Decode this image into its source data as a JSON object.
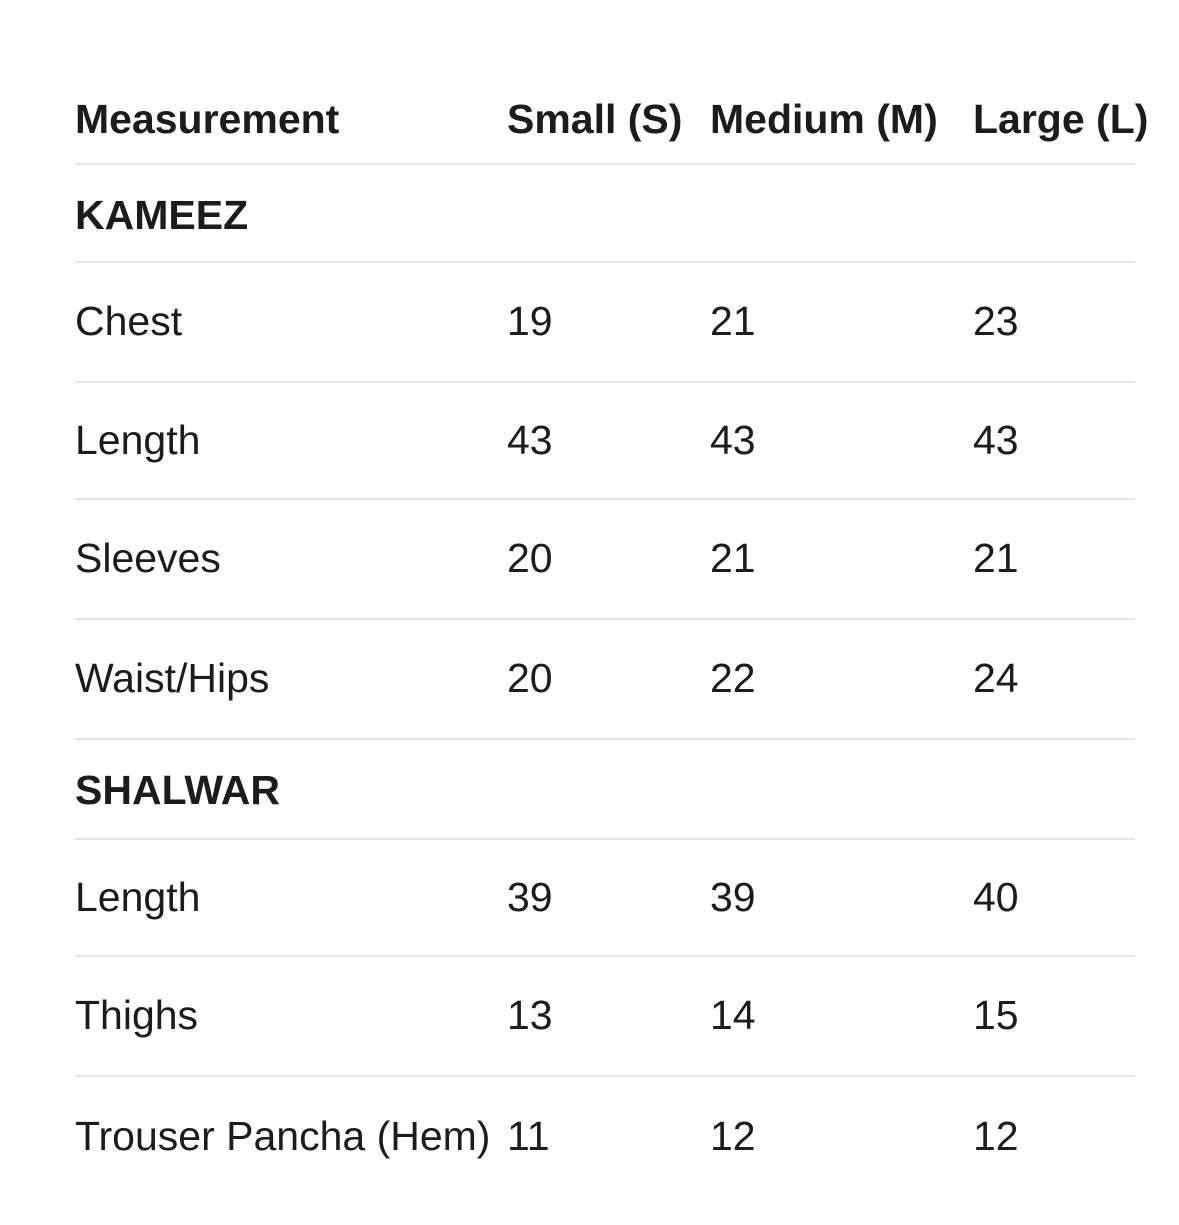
{
  "table": {
    "columns": [
      "Measurement",
      "Small (S)",
      "Medium (M)",
      "Large (L)"
    ],
    "sections": [
      {
        "name": "KAMEEZ",
        "rows": [
          {
            "label": "Chest",
            "values": [
              "19",
              "21",
              "23"
            ]
          },
          {
            "label": "Length",
            "values": [
              "43",
              "43",
              "43"
            ]
          },
          {
            "label": "Sleeves",
            "values": [
              "20",
              "21",
              "21"
            ]
          },
          {
            "label": "Waist/Hips",
            "values": [
              "20",
              "22",
              "24"
            ]
          }
        ]
      },
      {
        "name": "SHALWAR",
        "rows": [
          {
            "label": "Length",
            "values": [
              "39",
              "39",
              "40"
            ]
          },
          {
            "label": "Thighs",
            "values": [
              "13",
              "14",
              "15"
            ]
          },
          {
            "label": "Trouser Pancha (Hem)",
            "values": [
              "11",
              "12",
              "12"
            ]
          }
        ]
      }
    ],
    "colors": {
      "text": "#1c1c1e",
      "divider": "#e5e5e5",
      "background": "#ffffff"
    }
  }
}
